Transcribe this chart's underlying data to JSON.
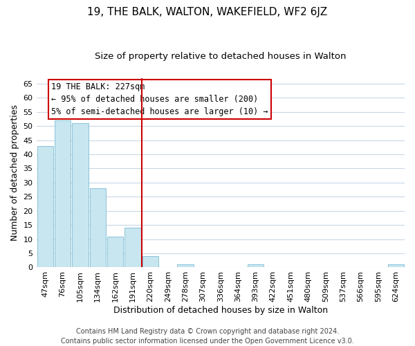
{
  "title": "19, THE BALK, WALTON, WAKEFIELD, WF2 6JZ",
  "subtitle": "Size of property relative to detached houses in Walton",
  "xlabel": "Distribution of detached houses by size in Walton",
  "ylabel": "Number of detached properties",
  "bar_color": "#c8e6f0",
  "bar_edge_color": "#7bbcd4",
  "categories": [
    "47sqm",
    "76sqm",
    "105sqm",
    "134sqm",
    "162sqm",
    "191sqm",
    "220sqm",
    "249sqm",
    "278sqm",
    "307sqm",
    "336sqm",
    "364sqm",
    "393sqm",
    "422sqm",
    "451sqm",
    "480sqm",
    "509sqm",
    "537sqm",
    "566sqm",
    "595sqm",
    "624sqm"
  ],
  "values": [
    43,
    52,
    51,
    28,
    11,
    14,
    4,
    0,
    1,
    0,
    0,
    0,
    1,
    0,
    0,
    0,
    0,
    0,
    0,
    0,
    1
  ],
  "ylim": [
    0,
    67
  ],
  "yticks": [
    0,
    5,
    10,
    15,
    20,
    25,
    30,
    35,
    40,
    45,
    50,
    55,
    60,
    65
  ],
  "vline_color": "#cc0000",
  "vline_x_idx": 6,
  "annotation_title": "19 THE BALK: 227sqm",
  "annotation_line1": "← 95% of detached houses are smaller (200)",
  "annotation_line2": "5% of semi-detached houses are larger (10) →",
  "annotation_box_color": "#ffffff",
  "annotation_box_edge": "#cc0000",
  "footer1": "Contains HM Land Registry data © Crown copyright and database right 2024.",
  "footer2": "Contains public sector information licensed under the Open Government Licence v3.0.",
  "bg_color": "#ffffff",
  "grid_color": "#c8d8e8",
  "title_fontsize": 11,
  "subtitle_fontsize": 9.5,
  "axis_label_fontsize": 9,
  "tick_fontsize": 8,
  "annotation_fontsize": 8.5,
  "footer_fontsize": 7
}
